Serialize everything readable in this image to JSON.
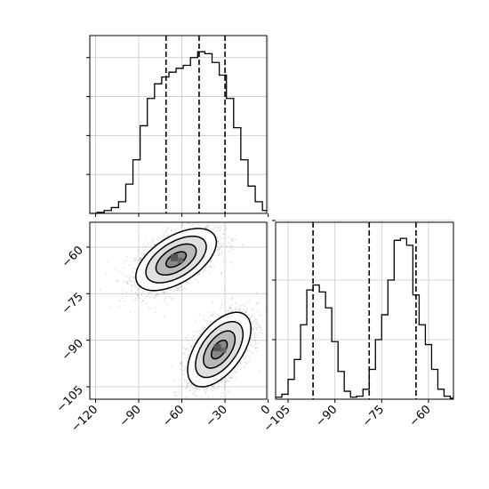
{
  "chart_data": {
    "type": "corner",
    "parameters": [
      {
        "name": "",
        "range": [
          -124,
          -1
        ],
        "ticks": [
          -120,
          -90,
          -60,
          -30,
          0
        ],
        "tick_labels": [
          "−120",
          "−90",
          "−60",
          "−30",
          "0"
        ],
        "quantiles": [
          -71,
          -48,
          -30
        ]
      },
      {
        "name": "",
        "range": [
          -109,
          -52
        ],
        "ticks": [
          -105,
          -90,
          -75,
          -60
        ],
        "tick_labels": [
          "−105",
          "−90",
          "−75",
          "−60"
        ],
        "quantiles": [
          -97,
          -79,
          -64
        ]
      }
    ],
    "grid": true,
    "histograms": [
      {
        "parameter_index": 0,
        "bin_edges": [
          -124,
          -119,
          -114,
          -109,
          -104,
          -99,
          -94,
          -89,
          -84,
          -79,
          -74,
          -69,
          -64,
          -59,
          -54,
          -49,
          -44,
          -39,
          -34,
          -29,
          -24,
          -19,
          -14,
          -9,
          -4,
          -1
        ],
        "counts": [
          0,
          1,
          3,
          6,
          12,
          30,
          55,
          90,
          118,
          133,
          140,
          145,
          149,
          152,
          160,
          166,
          164,
          155,
          142,
          118,
          88,
          55,
          28,
          12,
          3
        ]
      },
      {
        "parameter_index": 1,
        "bin_edges": [
          -109,
          -107,
          -105,
          -103,
          -101,
          -99,
          -97,
          -95,
          -93,
          -91,
          -89,
          -87,
          -85,
          -83,
          -81,
          -79,
          -77,
          -75,
          -73,
          -71,
          -69,
          -67,
          -65,
          -63,
          -61,
          -59,
          -57,
          -55,
          -53,
          -52
        ],
        "counts": [
          2,
          5,
          20,
          40,
          75,
          110,
          115,
          108,
          92,
          58,
          28,
          8,
          2,
          3,
          10,
          30,
          60,
          85,
          120,
          160,
          162,
          155,
          105,
          75,
          55,
          30,
          10,
          3,
          1
        ]
      }
    ],
    "scatter_2d": {
      "x_parameter": 0,
      "y_parameter": 1,
      "clusters": [
        {
          "mean": [
            -64,
            -64
          ],
          "sd": [
            14,
            5
          ],
          "rho": 0.55,
          "n": 2200
        },
        {
          "mean": [
            -34,
            -93
          ],
          "sd": [
            11,
            6
          ],
          "rho": 0.55,
          "n": 2200
        }
      ],
      "contour_levels_sigma": [
        0.5,
        1.0,
        1.5,
        2.0
      ]
    }
  }
}
